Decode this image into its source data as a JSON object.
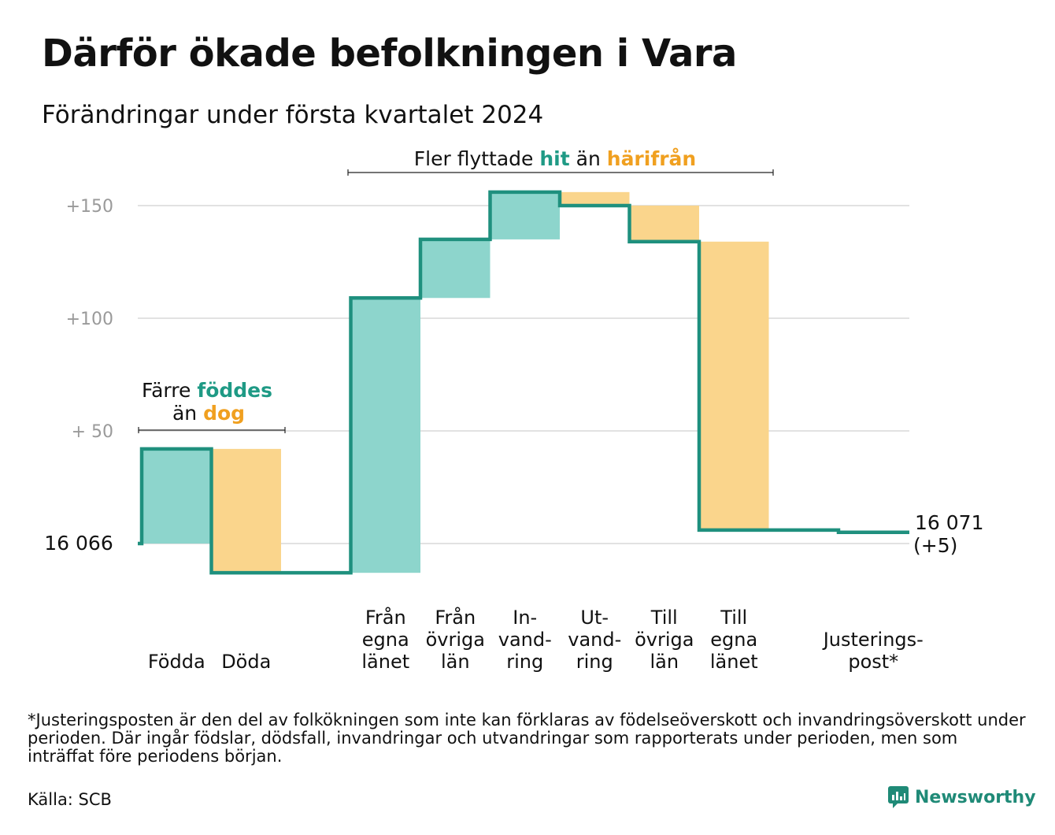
{
  "title": "Därför ökade befolkningen i Vara",
  "subtitle": "Förändringar under första kvartalet 2024",
  "chart_data": {
    "type": "waterfall",
    "baseline": 16066,
    "baseline_label": "16 066",
    "end_label_line1": "16 071",
    "end_label_line2": "(+5)",
    "yticks": [
      {
        "value": 50,
        "label": "+ 50"
      },
      {
        "value": 100,
        "label": "+100"
      },
      {
        "value": 150,
        "label": "+150"
      }
    ],
    "ylim": [
      -15,
      157
    ],
    "categories": [
      {
        "lines": [
          "Födda"
        ],
        "change": 42,
        "kind": "in"
      },
      {
        "lines": [
          "Döda"
        ],
        "change": -55,
        "kind": "out"
      },
      {
        "lines": [
          ""
        ],
        "change": 0,
        "kind": "gap"
      },
      {
        "lines": [
          "Från",
          "egna",
          "länet"
        ],
        "change": 122,
        "kind": "in"
      },
      {
        "lines": [
          "Från",
          "övriga",
          "län"
        ],
        "change": 26,
        "kind": "in"
      },
      {
        "lines": [
          "In-",
          "vand-",
          "ring"
        ],
        "change": 21,
        "kind": "in"
      },
      {
        "lines": [
          "Ut-",
          "vand-",
          "ring"
        ],
        "change": -6,
        "kind": "out"
      },
      {
        "lines": [
          "Till",
          "övriga",
          "län"
        ],
        "change": -16,
        "kind": "out"
      },
      {
        "lines": [
          "Till",
          "egna",
          "länet"
        ],
        "change": -128,
        "kind": "out"
      },
      {
        "lines": [
          ""
        ],
        "change": 0,
        "kind": "gap"
      },
      {
        "lines": [
          "Justerings-",
          "post*"
        ],
        "change": -1,
        "kind": "adj"
      }
    ],
    "annotations": {
      "births": {
        "line1_a": "Färre ",
        "line1_b": "föddes",
        "line2_a": "än ",
        "line2_b": "dog"
      },
      "migration": {
        "a": "Fler flyttade ",
        "b": "hit",
        "c": " än ",
        "d": "härifrån"
      }
    },
    "colors": {
      "in": "#8dd5cc",
      "out": "#fad58c",
      "line": "#1f907e",
      "accent_in": "#1f9a85",
      "accent_out": "#f0a020",
      "grid": "#e2e2e2",
      "tick": "#9a9a9a"
    }
  },
  "footnote": "*Justeringsposten är den del av folkökningen som inte kan förklaras av födelseöverskott och invandringsöverskott under perioden. Där ingår födslar, dödsfall, invandringar och utvandringar som rapporterats under perioden, men som inträffat före periodens början.",
  "source": "Källa: SCB",
  "logo_text": "Newsworthy"
}
